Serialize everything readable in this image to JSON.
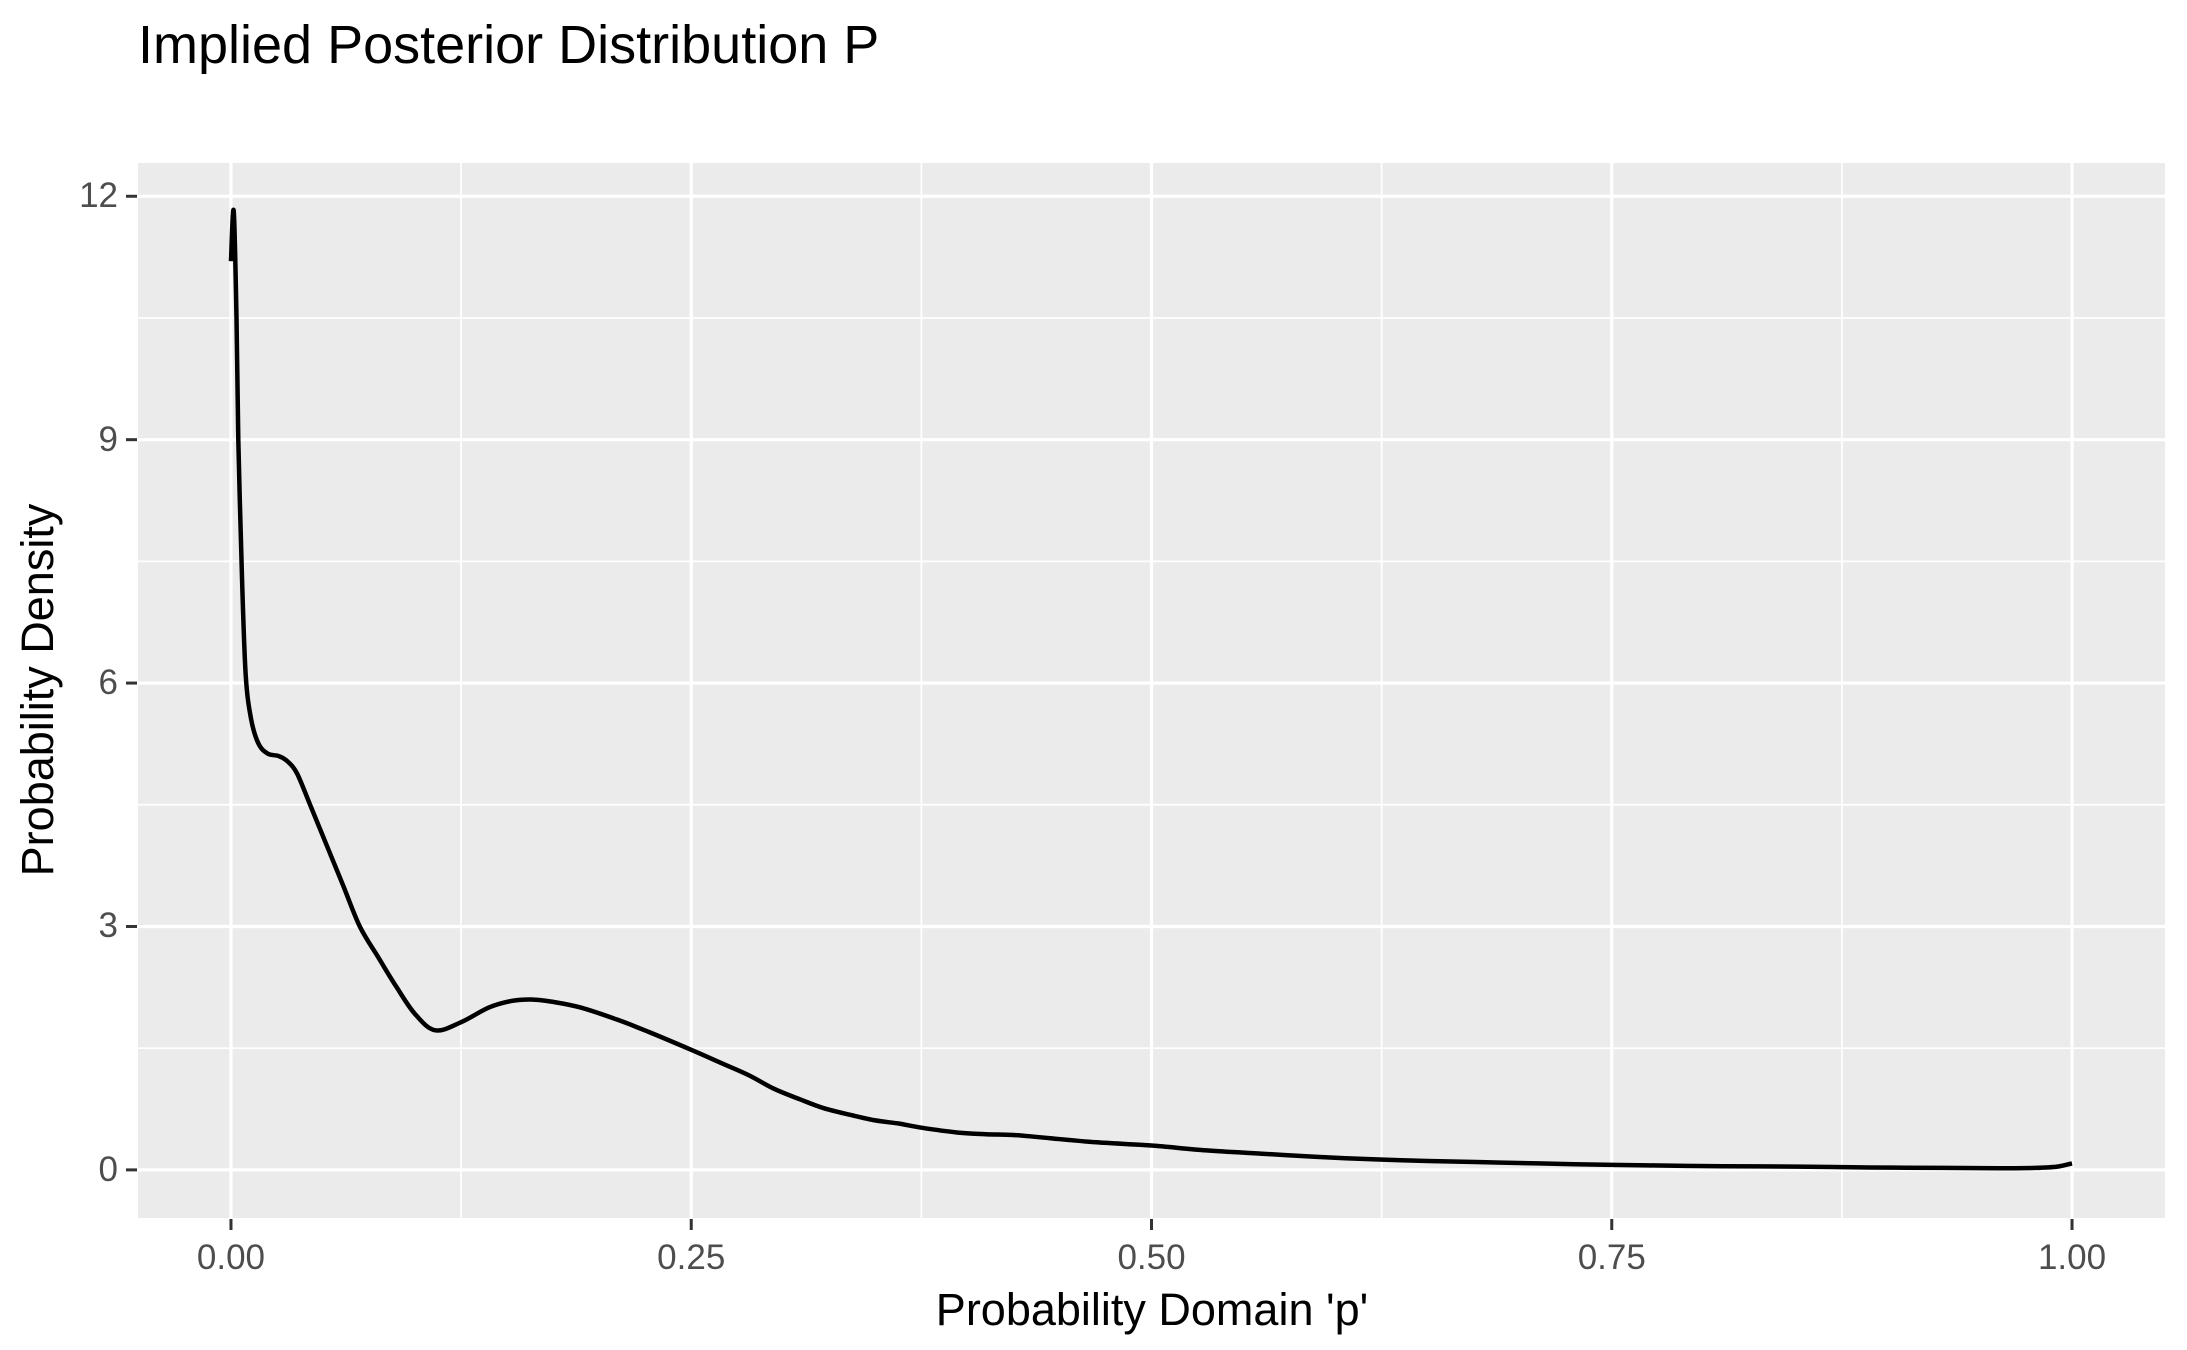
{
  "title": "Implied Posterior Distribution P",
  "colors": {
    "background": "#FFFFFF",
    "panel": "#EBEBEB",
    "grid": "#FFFFFF",
    "line": "#000000",
    "tick_text": "#4D4D4D",
    "tick_mark": "#333333",
    "title_text": "#000000"
  },
  "chart_data": {
    "type": "line",
    "title": "Implied Posterior Distribution P",
    "xlabel": "Probability Domain 'p'",
    "ylabel": "Probability Density",
    "xlim": [
      -0.0505,
      1.0505
    ],
    "ylim": [
      -0.593,
      12.41
    ],
    "x_ticks": [
      0.0,
      0.25,
      0.5,
      0.75,
      1.0
    ],
    "x_tick_labels": [
      "0.00",
      "0.25",
      "0.50",
      "0.75",
      "1.00"
    ],
    "x_minor_ticks": [
      0.125,
      0.375,
      0.625,
      0.875
    ],
    "y_ticks": [
      0,
      3,
      6,
      9,
      12
    ],
    "y_tick_labels": [
      "0",
      "3",
      "6",
      "9",
      "12"
    ],
    "y_minor_ticks": [
      1.5,
      4.5,
      7.5,
      10.5
    ],
    "grid": true,
    "legend": false,
    "series": [
      {
        "name": "posterior-density",
        "color": "#000000",
        "points": [
          [
            0.0,
            11.2
          ],
          [
            0.0015,
            11.82
          ],
          [
            0.003,
            10.5
          ],
          [
            0.004,
            9.0
          ],
          [
            0.006,
            7.3
          ],
          [
            0.008,
            6.1
          ],
          [
            0.011,
            5.55
          ],
          [
            0.015,
            5.25
          ],
          [
            0.02,
            5.13
          ],
          [
            0.026,
            5.1
          ],
          [
            0.031,
            5.03
          ],
          [
            0.036,
            4.88
          ],
          [
            0.043,
            4.5
          ],
          [
            0.052,
            4.0
          ],
          [
            0.061,
            3.5
          ],
          [
            0.07,
            3.0
          ],
          [
            0.08,
            2.62
          ],
          [
            0.09,
            2.25
          ],
          [
            0.1,
            1.92
          ],
          [
            0.111,
            1.72
          ],
          [
            0.125,
            1.82
          ],
          [
            0.14,
            2.0
          ],
          [
            0.152,
            2.08
          ],
          [
            0.163,
            2.1
          ],
          [
            0.175,
            2.07
          ],
          [
            0.19,
            2.0
          ],
          [
            0.21,
            1.85
          ],
          [
            0.227,
            1.7
          ],
          [
            0.25,
            1.48
          ],
          [
            0.266,
            1.32
          ],
          [
            0.281,
            1.17
          ],
          [
            0.295,
            1.0
          ],
          [
            0.309,
            0.87
          ],
          [
            0.322,
            0.76
          ],
          [
            0.336,
            0.68
          ],
          [
            0.35,
            0.61
          ],
          [
            0.363,
            0.57
          ],
          [
            0.375,
            0.52
          ],
          [
            0.395,
            0.46
          ],
          [
            0.41,
            0.44
          ],
          [
            0.425,
            0.43
          ],
          [
            0.445,
            0.39
          ],
          [
            0.47,
            0.34
          ],
          [
            0.5,
            0.3
          ],
          [
            0.53,
            0.24
          ],
          [
            0.56,
            0.2
          ],
          [
            0.59,
            0.16
          ],
          [
            0.62,
            0.13
          ],
          [
            0.65,
            0.11
          ],
          [
            0.69,
            0.09
          ],
          [
            0.73,
            0.07
          ],
          [
            0.77,
            0.055
          ],
          [
            0.81,
            0.045
          ],
          [
            0.85,
            0.04
          ],
          [
            0.89,
            0.03
          ],
          [
            0.93,
            0.025
          ],
          [
            0.96,
            0.02
          ],
          [
            0.98,
            0.025
          ],
          [
            0.992,
            0.04
          ],
          [
            1.0,
            0.08
          ]
        ]
      }
    ]
  }
}
